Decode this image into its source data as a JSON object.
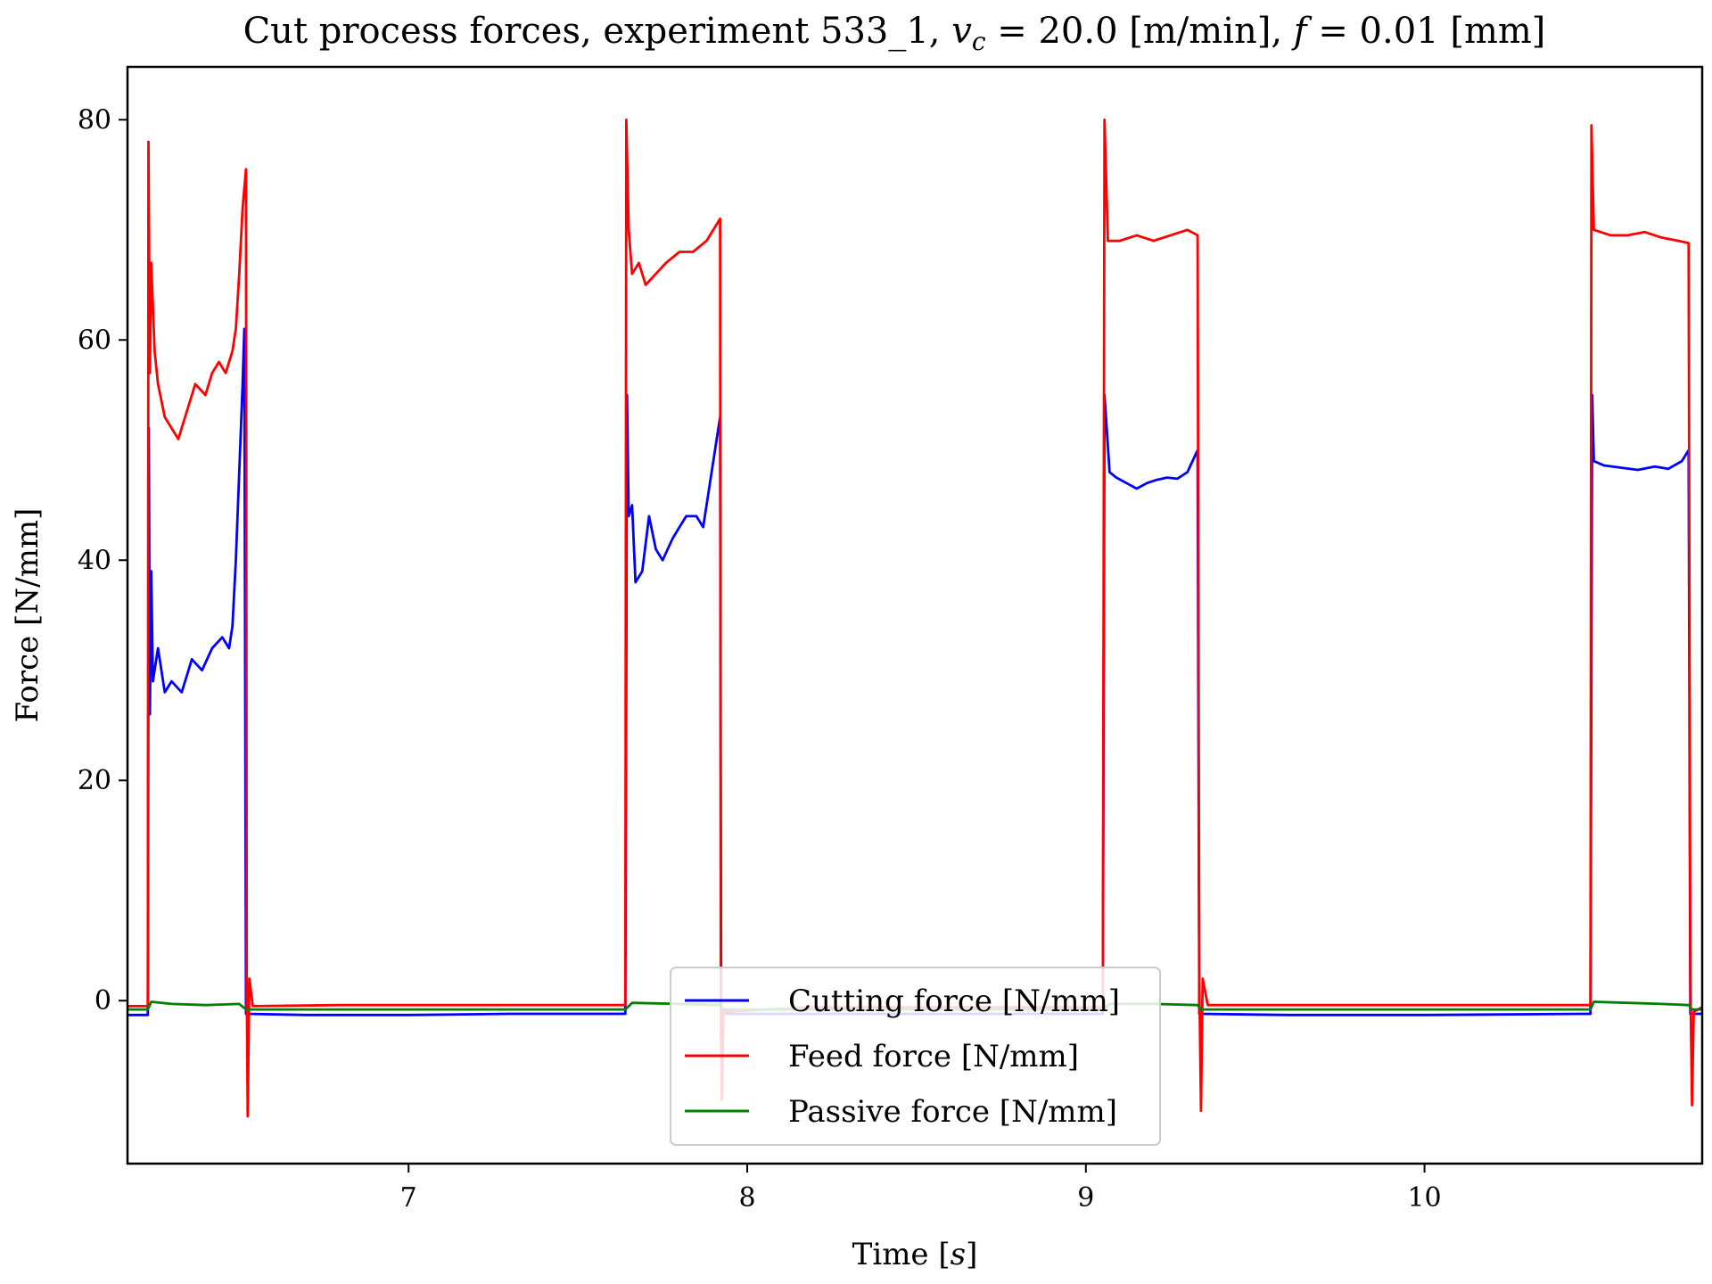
{
  "chart_data": {
    "type": "line",
    "title": "Cut process forces, experiment 533_1, v_c = 20.0 [m/min], f = 0.01 [mm]",
    "title_parts": {
      "prefix": "Cut process forces, experiment 533_1, ",
      "vc_symbol": "v",
      "vc_subscript": "c",
      "vc_value": " = 20.0 [m/min], ",
      "f_symbol": "f",
      "f_value": " = 0.01 [mm]"
    },
    "xlabel": "Time [s]",
    "xlabel_parts": {
      "prefix": "Time [",
      "unit": "s",
      "suffix": "]"
    },
    "ylabel": "Force [N/mm]",
    "xlim": [
      6.17,
      10.82
    ],
    "ylim": [
      -14.8,
      84.8
    ],
    "xticks": [
      7,
      8,
      9,
      10
    ],
    "xtick_labels": [
      "7",
      "8",
      "9",
      "10"
    ],
    "yticks": [
      0,
      20,
      40,
      60,
      80
    ],
    "ytick_labels": [
      "0",
      "20",
      "40",
      "60",
      "80"
    ],
    "grid": false,
    "legend_position": "bottom-center",
    "series": [
      {
        "name": "Cutting force [N/mm]",
        "color": "#0000ff",
        "points": [
          [
            6.17,
            -1.3
          ],
          [
            6.23,
            -1.3
          ],
          [
            6.233,
            52
          ],
          [
            6.236,
            26
          ],
          [
            6.24,
            39
          ],
          [
            6.245,
            29
          ],
          [
            6.26,
            32
          ],
          [
            6.28,
            28
          ],
          [
            6.3,
            29
          ],
          [
            6.33,
            28
          ],
          [
            6.36,
            31
          ],
          [
            6.39,
            30
          ],
          [
            6.42,
            32
          ],
          [
            6.45,
            33
          ],
          [
            6.47,
            32
          ],
          [
            6.48,
            34
          ],
          [
            6.49,
            40
          ],
          [
            6.5,
            48
          ],
          [
            6.51,
            56
          ],
          [
            6.515,
            61
          ],
          [
            6.52,
            -1.2
          ],
          [
            6.7,
            -1.3
          ],
          [
            7.0,
            -1.3
          ],
          [
            7.3,
            -1.2
          ],
          [
            7.64,
            -1.2
          ],
          [
            7.645,
            55
          ],
          [
            7.65,
            44
          ],
          [
            7.66,
            45
          ],
          [
            7.67,
            38
          ],
          [
            7.69,
            39
          ],
          [
            7.71,
            44
          ],
          [
            7.73,
            41
          ],
          [
            7.75,
            40
          ],
          [
            7.78,
            42
          ],
          [
            7.8,
            43
          ],
          [
            7.82,
            44
          ],
          [
            7.85,
            44
          ],
          [
            7.87,
            43
          ],
          [
            7.89,
            47
          ],
          [
            7.91,
            51
          ],
          [
            7.92,
            53
          ],
          [
            7.923,
            -1.2
          ],
          [
            8.2,
            -1.2
          ],
          [
            8.6,
            -1.2
          ],
          [
            9.05,
            -1.2
          ],
          [
            9.055,
            55
          ],
          [
            9.07,
            48
          ],
          [
            9.09,
            47.5
          ],
          [
            9.12,
            47
          ],
          [
            9.15,
            46.5
          ],
          [
            9.18,
            47
          ],
          [
            9.21,
            47.3
          ],
          [
            9.24,
            47.5
          ],
          [
            9.27,
            47.4
          ],
          [
            9.3,
            48
          ],
          [
            9.33,
            50
          ],
          [
            9.335,
            -1.2
          ],
          [
            9.6,
            -1.3
          ],
          [
            10.0,
            -1.3
          ],
          [
            10.49,
            -1.2
          ],
          [
            10.495,
            55
          ],
          [
            10.5,
            49
          ],
          [
            10.53,
            48.6
          ],
          [
            10.58,
            48.4
          ],
          [
            10.63,
            48.2
          ],
          [
            10.68,
            48.5
          ],
          [
            10.72,
            48.3
          ],
          [
            10.76,
            49
          ],
          [
            10.78,
            50
          ],
          [
            10.785,
            -1.2
          ],
          [
            10.82,
            -1.2
          ]
        ]
      },
      {
        "name": "Feed force [N/mm]",
        "color": "#ff0000",
        "points": [
          [
            6.17,
            -0.5
          ],
          [
            6.23,
            -0.5
          ],
          [
            6.232,
            78
          ],
          [
            6.236,
            57
          ],
          [
            6.24,
            67
          ],
          [
            6.25,
            59
          ],
          [
            6.26,
            56
          ],
          [
            6.28,
            53
          ],
          [
            6.3,
            52
          ],
          [
            6.32,
            51
          ],
          [
            6.35,
            54
          ],
          [
            6.37,
            56
          ],
          [
            6.4,
            55
          ],
          [
            6.42,
            57
          ],
          [
            6.44,
            58
          ],
          [
            6.46,
            57
          ],
          [
            6.48,
            59
          ],
          [
            6.49,
            61
          ],
          [
            6.5,
            66
          ],
          [
            6.51,
            72
          ],
          [
            6.52,
            75.5
          ],
          [
            6.522,
            2
          ],
          [
            6.525,
            -10.5
          ],
          [
            6.53,
            2
          ],
          [
            6.54,
            -0.5
          ],
          [
            6.8,
            -0.4
          ],
          [
            7.2,
            -0.4
          ],
          [
            7.64,
            -0.4
          ],
          [
            7.643,
            80
          ],
          [
            7.65,
            70
          ],
          [
            7.66,
            66
          ],
          [
            7.68,
            67
          ],
          [
            7.7,
            65
          ],
          [
            7.73,
            66
          ],
          [
            7.76,
            67
          ],
          [
            7.8,
            68
          ],
          [
            7.84,
            68
          ],
          [
            7.88,
            69
          ],
          [
            7.92,
            71
          ],
          [
            7.922,
            -2
          ],
          [
            7.925,
            -9
          ],
          [
            7.93,
            -1
          ],
          [
            8.2,
            -0.6
          ],
          [
            8.6,
            -0.6
          ],
          [
            9.05,
            -0.6
          ],
          [
            9.055,
            80
          ],
          [
            9.065,
            69
          ],
          [
            9.1,
            69
          ],
          [
            9.15,
            69.5
          ],
          [
            9.2,
            69
          ],
          [
            9.25,
            69.5
          ],
          [
            9.3,
            70
          ],
          [
            9.33,
            69.5
          ],
          [
            9.335,
            2
          ],
          [
            9.34,
            -10
          ],
          [
            9.345,
            2
          ],
          [
            9.36,
            -0.4
          ],
          [
            9.7,
            -0.4
          ],
          [
            10.1,
            -0.4
          ],
          [
            10.49,
            -0.4
          ],
          [
            10.493,
            79.5
          ],
          [
            10.5,
            70
          ],
          [
            10.55,
            69.5
          ],
          [
            10.6,
            69.5
          ],
          [
            10.65,
            69.8
          ],
          [
            10.7,
            69.3
          ],
          [
            10.75,
            69
          ],
          [
            10.78,
            68.8
          ],
          [
            10.785,
            2
          ],
          [
            10.79,
            -9.5
          ],
          [
            10.795,
            -1
          ],
          [
            10.82,
            -0.6
          ]
        ]
      },
      {
        "name": "Passive force [N/mm]",
        "color": "#008000",
        "points": [
          [
            6.17,
            -0.8
          ],
          [
            6.23,
            -0.8
          ],
          [
            6.24,
            -0.1
          ],
          [
            6.3,
            -0.3
          ],
          [
            6.4,
            -0.4
          ],
          [
            6.5,
            -0.3
          ],
          [
            6.52,
            -0.8
          ],
          [
            7.0,
            -0.8
          ],
          [
            7.64,
            -0.8
          ],
          [
            7.66,
            -0.2
          ],
          [
            7.8,
            -0.3
          ],
          [
            7.92,
            -0.4
          ],
          [
            7.93,
            -0.8
          ],
          [
            8.5,
            -0.8
          ],
          [
            9.05,
            -0.8
          ],
          [
            9.07,
            -0.3
          ],
          [
            9.2,
            -0.3
          ],
          [
            9.33,
            -0.4
          ],
          [
            9.34,
            -0.8
          ],
          [
            10.0,
            -0.8
          ],
          [
            10.49,
            -0.8
          ],
          [
            10.5,
            -0.1
          ],
          [
            10.6,
            -0.2
          ],
          [
            10.7,
            -0.3
          ],
          [
            10.78,
            -0.4
          ],
          [
            10.79,
            -0.8
          ],
          [
            10.82,
            -0.8
          ]
        ]
      }
    ]
  }
}
